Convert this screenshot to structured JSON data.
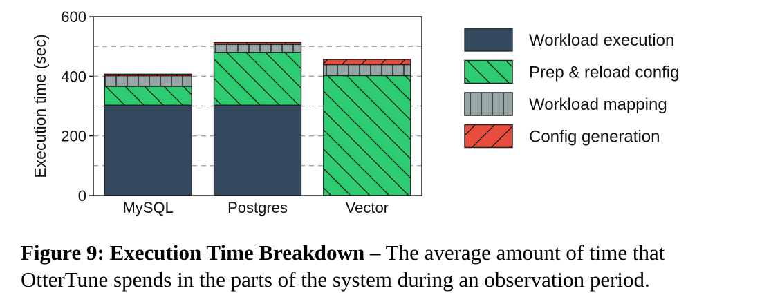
{
  "chart_data": {
    "type": "bar",
    "stacked": true,
    "categories": [
      "MySQL",
      "Postgres",
      "Vector"
    ],
    "series": [
      {
        "name": "Workload execution",
        "values": [
          303,
          303,
          0
        ],
        "color": "#34495e",
        "hatch": "none"
      },
      {
        "name": "Prep & reload config",
        "values": [
          63,
          177,
          402
        ],
        "color": "#2ecc71",
        "hatch": "backslash"
      },
      {
        "name": "Workload mapping",
        "values": [
          35,
          27,
          37
        ],
        "color": "#95a5a6",
        "hatch": "vertical"
      },
      {
        "name": "Config generation",
        "values": [
          6,
          6,
          17
        ],
        "color": "#e74c3c",
        "hatch": "slash"
      }
    ],
    "ylabel": "Execution time (sec)",
    "xlabel": "",
    "ylim": [
      0,
      600
    ],
    "yticks": [
      0,
      200,
      400,
      600
    ],
    "grid": "horizontal dashed",
    "legend_position": "right"
  },
  "caption": {
    "label": "Figure 9: Execution Time Breakdown",
    "text": " – The average amount of time that OtterTune spends in the parts of the system during an observation period."
  }
}
